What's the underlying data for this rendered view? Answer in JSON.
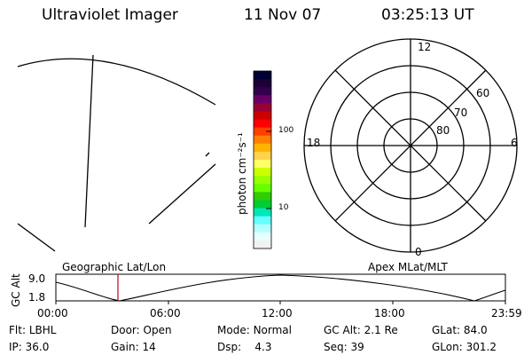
{
  "header": {
    "instrument": "Ultraviolet Imager",
    "date": "11 Nov 07",
    "time": "03:25:13 UT"
  },
  "colorbar": {
    "unit_label": "photon cm⁻²s⁻¹",
    "ticks": [
      "100",
      "10"
    ],
    "colors": [
      "#000033",
      "#1a0033",
      "#33004d",
      "#660066",
      "#990033",
      "#cc0000",
      "#ff0000",
      "#ff4000",
      "#ff8000",
      "#ffb300",
      "#ffd24d",
      "#ffff66",
      "#ccff00",
      "#99ff00",
      "#66ff00",
      "#33cc00",
      "#00cc33",
      "#00e6b8",
      "#66ffff",
      "#b3ffff",
      "#e6ffff",
      "#f2f2f2"
    ]
  },
  "polar_plot": {
    "mlt_labels": {
      "top": "12",
      "left": "18",
      "right": "6",
      "bottom": "0"
    },
    "lat_labels": [
      "60",
      "70",
      "80"
    ]
  },
  "timeline": {
    "left_title": "Geographic Lat/Lon",
    "right_title": "Apex MLat/MLT",
    "axis_label": "GC Alt",
    "y_ticks": [
      "9.0",
      "1.8"
    ],
    "x_ticks": [
      "00:00",
      "06:00",
      "12:00",
      "18:00",
      "23:59"
    ],
    "current_marker_time": "03:25:13"
  },
  "status": {
    "row1": [
      {
        "key": "Flt:",
        "value": "LBHL"
      },
      {
        "key": "Door:",
        "value": "Open"
      },
      {
        "key": "Mode:",
        "value": "Normal"
      },
      {
        "key": "GC Alt:",
        "value": "2.1 Re"
      },
      {
        "key": "GLat:",
        "value": "84.0"
      }
    ],
    "row2": [
      {
        "key": "IP:",
        "value": "36.0"
      },
      {
        "key": "Gain:",
        "value": "14"
      },
      {
        "key": "Dsp:",
        "value": "4.3"
      },
      {
        "key": "Seq:",
        "value": "39"
      },
      {
        "key": "GLon:",
        "value": "301.2"
      }
    ]
  }
}
